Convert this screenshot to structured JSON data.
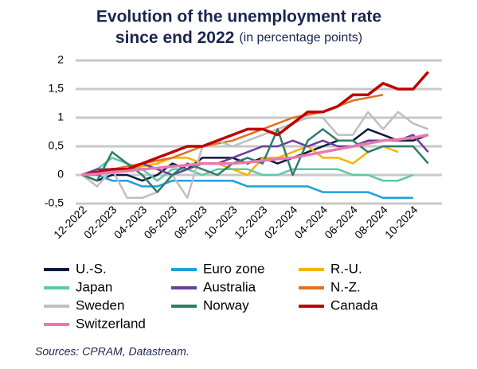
{
  "chart_data": {
    "type": "line",
    "title": [
      "Evolution of the unemployment rate",
      "since end 2022"
    ],
    "subtitle": "(in percentage points)",
    "source": "Sources: CPRAM, Datastream.",
    "categories": [
      "12-2022",
      null,
      "02-2023",
      null,
      "04-2023",
      null,
      "06-2023",
      null,
      "08-2023",
      null,
      "10-2023",
      null,
      "12-2023",
      null,
      "02-2024",
      null,
      "04-2024",
      null,
      "06-2024",
      null,
      "08-2024",
      null,
      "10-2024",
      null
    ],
    "ylim": [
      -0.5,
      2
    ],
    "yticks": [
      {
        "value": -0.5,
        "label": "-0,5"
      },
      0,
      {
        "value": 0.5,
        "label": "0,5"
      },
      1,
      {
        "value": 1.5,
        "label": "1,5"
      },
      2
    ],
    "grid": true,
    "legend": "bottom",
    "series": [
      {
        "name": "U.-S.",
        "color": "#0d1a3a",
        "values": [
          0,
          -0.1,
          0,
          0,
          -0.1,
          0,
          0.2,
          0.1,
          0.3,
          0.3,
          0.3,
          0.2,
          0.3,
          0.2,
          0.3,
          0.4,
          0.5,
          0.6,
          0.6,
          0.8,
          0.7,
          0.6,
          0.6,
          0.7
        ]
      },
      {
        "name": "Euro zone",
        "color": "#1ea0dc",
        "values": [
          0,
          0,
          -0.1,
          -0.1,
          -0.2,
          -0.2,
          -0.1,
          -0.1,
          -0.1,
          -0.1,
          -0.1,
          -0.2,
          -0.2,
          -0.2,
          -0.2,
          -0.2,
          -0.3,
          -0.3,
          -0.3,
          -0.3,
          -0.4,
          -0.4,
          -0.4,
          null
        ]
      },
      {
        "name": "R.-U.",
        "color": "#f5b400",
        "values": [
          0,
          0.05,
          0.1,
          0.1,
          0.15,
          0.2,
          0.3,
          0.3,
          0.2,
          0.2,
          0.1,
          0,
          0.3,
          0.3,
          0.4,
          0.5,
          0.3,
          0.3,
          0.2,
          0.4,
          0.5,
          0.4,
          null,
          null
        ]
      },
      {
        "name": "Japan",
        "color": "#5cc8a8",
        "values": [
          0,
          0.1,
          0.3,
          0.2,
          0.1,
          -0.1,
          0.1,
          0.1,
          0,
          0.1,
          0.1,
          0.1,
          0,
          0,
          0.1,
          0.1,
          0.1,
          0.1,
          0,
          0,
          -0.1,
          -0.1,
          0,
          null
        ]
      },
      {
        "name": "Australia",
        "color": "#6a3d9a",
        "values": [
          0,
          0.1,
          0.1,
          0.1,
          0.2,
          0.1,
          0,
          0.1,
          0.2,
          0.2,
          0.3,
          0.4,
          0.5,
          0.5,
          0.6,
          0.5,
          0.6,
          0.5,
          0.5,
          0.6,
          0.6,
          0.6,
          0.7,
          0.4
        ]
      },
      {
        "name": "N.-Z.",
        "color": "#e07020",
        "values": [
          0,
          0.05,
          0.1,
          0.15,
          0.2,
          0.25,
          0.3,
          0.4,
          0.5,
          0.55,
          0.6,
          0.7,
          0.8,
          0.9,
          1,
          1.05,
          1.1,
          1.2,
          1.3,
          1.35,
          1.4,
          null,
          null,
          null
        ]
      },
      {
        "name": "Sweden",
        "color": "#bfbfbf",
        "values": [
          0,
          -0.2,
          0.1,
          -0.4,
          -0.4,
          -0.3,
          0,
          -0.4,
          0.5,
          0.6,
          0.5,
          0.6,
          0.7,
          0.8,
          0.9,
          1,
          1,
          0.7,
          0.7,
          1.1,
          0.8,
          1.1,
          0.9,
          0.8
        ]
      },
      {
        "name": "Norway",
        "color": "#2e7d6b",
        "values": [
          0,
          -0.1,
          0.4,
          0.2,
          0,
          -0.3,
          0,
          0.2,
          0.1,
          0,
          0.2,
          0.3,
          0.2,
          0.8,
          0,
          0.6,
          0.8,
          0.6,
          0.6,
          0.4,
          0.5,
          0.5,
          0.5,
          0.2
        ]
      },
      {
        "name": "Canada",
        "color": "#c00000",
        "values": [
          0,
          0.05,
          0.1,
          0.1,
          0.2,
          0.3,
          0.4,
          0.5,
          0.5,
          0.6,
          0.7,
          0.8,
          0.8,
          0.7,
          0.9,
          1.1,
          1.1,
          1.2,
          1.4,
          1.4,
          1.6,
          1.5,
          1.5,
          1.8
        ]
      },
      {
        "name": "Switzerland",
        "color": "#e879b0",
        "values": [
          0,
          0.02,
          0.05,
          0.07,
          0.1,
          0.12,
          0.15,
          0.17,
          0.2,
          0.2,
          0.2,
          0.22,
          0.25,
          0.28,
          0.3,
          0.35,
          0.4,
          0.45,
          0.5,
          0.55,
          0.6,
          0.62,
          0.65,
          0.7
        ]
      }
    ]
  }
}
